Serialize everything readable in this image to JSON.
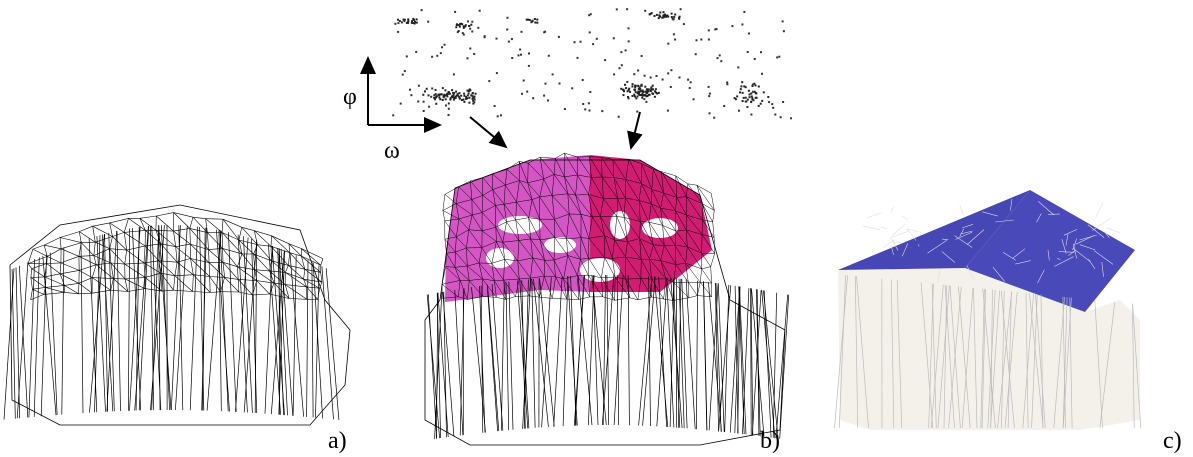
{
  "axes": {
    "vertical": "φ",
    "horizontal": "ω"
  },
  "panels": [
    {
      "label": "a)"
    },
    {
      "label": "b)"
    },
    {
      "label": "c)"
    }
  ]
}
